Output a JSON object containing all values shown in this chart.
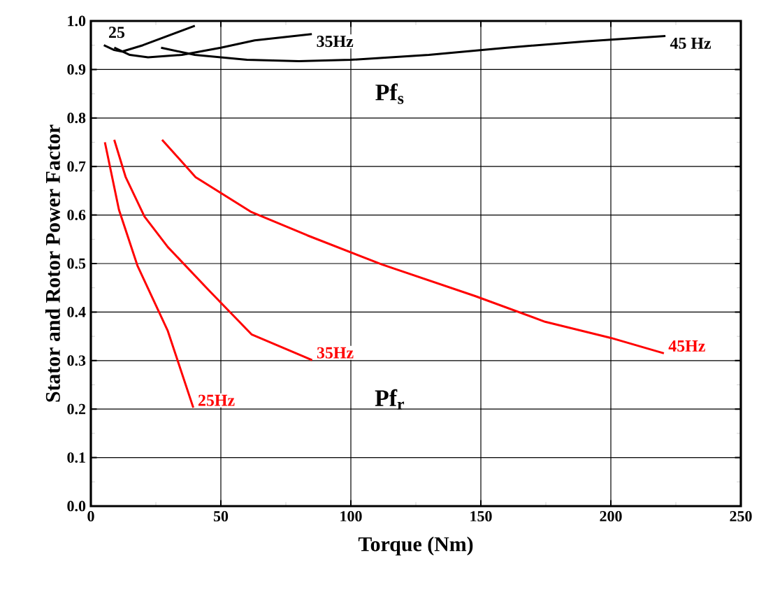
{
  "chart_data": {
    "type": "line",
    "xlabel": "Torque (Nm)",
    "ylabel": "Stator and Rotor Power Factor",
    "xlim": [
      0,
      250
    ],
    "ylim": [
      0,
      1.0
    ],
    "xticks": [
      0,
      50,
      100,
      150,
      200,
      250
    ],
    "yticks": [
      {
        "value": 0,
        "label": "0.0"
      },
      0.1,
      0.2,
      0.3,
      0.4,
      0.5,
      0.6,
      0.7,
      0.8,
      0.9,
      {
        "value": 1.0,
        "label": "1.0"
      }
    ],
    "grid": true,
    "legend": false,
    "marker": "none",
    "line_style": "solid",
    "series": [
      {
        "name": "25",
        "color": "#000000",
        "x": [
          5,
          9,
          12,
          20,
          30,
          40
        ],
        "values": [
          0.95,
          0.94,
          0.937,
          0.95,
          0.97,
          0.99
        ]
      },
      {
        "name": "35Hz",
        "color": "#000000",
        "x": [
          9,
          15,
          22,
          35,
          50,
          63,
          85
        ],
        "values": [
          0.945,
          0.93,
          0.925,
          0.93,
          0.945,
          0.96,
          0.973
        ]
      },
      {
        "name": "45 Hz",
        "color": "#000000",
        "x": [
          27,
          40,
          60,
          80,
          100,
          130,
          160,
          190,
          221
        ],
        "values": [
          0.945,
          0.93,
          0.92,
          0.917,
          0.92,
          0.93,
          0.945,
          0.958,
          0.969
        ]
      },
      {
        "name": "25Hz",
        "color": "#ff0000",
        "x": [
          5.4,
          10.8,
          17.9,
          29.6,
          39.4
        ],
        "values": [
          0.75,
          0.611,
          0.496,
          0.361,
          0.203
        ]
      },
      {
        "name": "35Hz",
        "color": "#ff0000",
        "x": [
          9,
          13.4,
          20.6,
          29.6,
          45.7,
          61.8,
          85.1
        ],
        "values": [
          0.755,
          0.678,
          0.597,
          0.534,
          0.443,
          0.354,
          0.301
        ]
      },
      {
        "name": "45Hz",
        "color": "#ff0000",
        "x": [
          27.4,
          40.3,
          61.8,
          83.3,
          112,
          147.8,
          174.7,
          199.8,
          220.4
        ],
        "values": [
          0.755,
          0.678,
          0.606,
          0.558,
          0.498,
          0.433,
          0.38,
          0.347,
          0.315
        ]
      }
    ],
    "annotations": [
      "Pf$_{s}$",
      "Pf$_{r}$"
    ]
  }
}
